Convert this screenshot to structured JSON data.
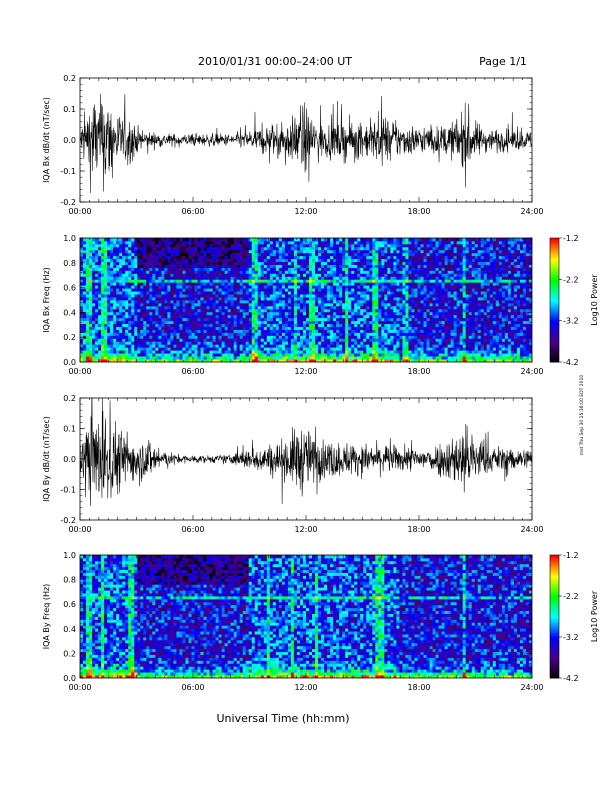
{
  "header": {
    "title": "2010/01/31  00:00–24:00 UT",
    "page": "Page 1/1"
  },
  "footer": {
    "xlabel": "Universal Time (hh:mm)",
    "side_note": "mst Thu Sep 30 15:38:00 EDT 2010"
  },
  "chart_data": [
    {
      "type": "line",
      "panel": "Bx waveform",
      "ylabel": "IQA Bx dB/dt (nT/sec)",
      "xlim": [
        0,
        24
      ],
      "ylim": [
        -0.2,
        0.2
      ],
      "xticks": [
        "00:00",
        "06:00",
        "12:00",
        "18:00",
        "24:00"
      ],
      "yticks": [
        "-0.2",
        "-0.1",
        "0.0",
        "0.1",
        "0.2"
      ],
      "envelope": {
        "hours": [
          0,
          0.3,
          0.7,
          1.0,
          1.4,
          1.8,
          2.2,
          2.7,
          3.2,
          4.0,
          5.0,
          6.0,
          7.0,
          8.0,
          8.7,
          9.5,
          10.2,
          10.8,
          11.3,
          11.7,
          12.0,
          12.4,
          13.0,
          14.0,
          15.0,
          16.0,
          17.0,
          17.8,
          18.8,
          19.7,
          20.2,
          20.5,
          20.9,
          21.5,
          22.5,
          23.3,
          24.0
        ],
        "amplitude": [
          0.05,
          0.12,
          0.2,
          0.16,
          0.2,
          0.13,
          0.1,
          0.09,
          0.04,
          0.03,
          0.025,
          0.025,
          0.025,
          0.025,
          0.035,
          0.05,
          0.07,
          0.07,
          0.09,
          0.13,
          0.14,
          0.09,
          0.07,
          0.08,
          0.07,
          0.09,
          0.07,
          0.06,
          0.05,
          0.07,
          0.1,
          0.15,
          0.08,
          0.05,
          0.045,
          0.04,
          0.035
        ]
      }
    },
    {
      "type": "heatmap",
      "panel": "Bx spectrogram",
      "ylabel": "IQA Bx Freq (Hz)",
      "xlim": [
        0,
        24
      ],
      "ylim": [
        0,
        1.0
      ],
      "xticks": [
        "00:00",
        "06:00",
        "12:00",
        "18:00",
        "24:00"
      ],
      "yticks": [
        "0.0",
        "0.2",
        "0.4",
        "0.6",
        "0.8",
        "1.0"
      ],
      "colorbar": {
        "label": "Log10 Power",
        "ticks": [
          "-1.2",
          "-2.2",
          "-3.2",
          "-4.2"
        ],
        "range": [
          -4.2,
          -1.2
        ],
        "colors": [
          "#000000",
          "#4b0082",
          "#0000ff",
          "#00ffff",
          "#00ff00",
          "#ffff00",
          "#ff0000"
        ]
      },
      "line_hz": 0.65,
      "vertical_streaks_hours": [
        0.5,
        1.3,
        9.3,
        11.4,
        12.3,
        14.2,
        15.7,
        17.3,
        20.4
      ]
    },
    {
      "type": "line",
      "panel": "By waveform",
      "ylabel": "IQA By dB/dt (nT/sec)",
      "xlim": [
        0,
        24
      ],
      "ylim": [
        -0.2,
        0.2
      ],
      "xticks": [
        "00:00",
        "06:00",
        "12:00",
        "18:00",
        "24:00"
      ],
      "yticks": [
        "-0.2",
        "-0.1",
        "0.0",
        "0.1",
        "0.2"
      ],
      "envelope": {
        "hours": [
          0,
          0.3,
          0.7,
          1.0,
          1.4,
          1.8,
          2.3,
          2.8,
          3.3,
          3.8,
          4.3,
          5.0,
          6.0,
          7.0,
          8.0,
          8.7,
          9.3,
          10.0,
          10.8,
          11.3,
          11.7,
          12.0,
          12.5,
          13.2,
          14.0,
          15.0,
          16.0,
          17.0,
          17.8,
          18.6,
          19.3,
          19.8,
          20.2,
          20.5,
          21.0,
          21.5,
          22.5,
          23.3,
          24.0
        ],
        "amplitude": [
          0.06,
          0.15,
          0.2,
          0.17,
          0.2,
          0.16,
          0.12,
          0.1,
          0.09,
          0.08,
          0.04,
          0.02,
          0.015,
          0.015,
          0.02,
          0.04,
          0.05,
          0.06,
          0.08,
          0.12,
          0.15,
          0.13,
          0.09,
          0.08,
          0.07,
          0.06,
          0.06,
          0.05,
          0.05,
          0.05,
          0.08,
          0.1,
          0.13,
          0.15,
          0.1,
          0.06,
          0.05,
          0.045,
          0.04
        ]
      }
    },
    {
      "type": "heatmap",
      "panel": "By spectrogram",
      "ylabel": "IQA By Freq (Hz)",
      "xlim": [
        0,
        24
      ],
      "ylim": [
        0,
        1.0
      ],
      "xticks": [
        "00:00",
        "06:00",
        "12:00",
        "18:00",
        "24:00"
      ],
      "yticks": [
        "0.0",
        "0.2",
        "0.4",
        "0.6",
        "0.8",
        "1.0"
      ],
      "colorbar": {
        "label": "Log10 Power",
        "ticks": [
          "-1.2",
          "-2.2",
          "-3.2",
          "-4.2"
        ],
        "range": [
          -4.2,
          -1.2
        ],
        "colors": [
          "#000000",
          "#4b0082",
          "#0000ff",
          "#00ffff",
          "#00ff00",
          "#ffff00",
          "#ff0000"
        ]
      },
      "line_hz": 0.66,
      "vertical_streaks_hours": [
        0.5,
        1.2,
        2.7,
        10.0,
        11.3,
        12.6,
        15.8,
        16.1,
        20.4
      ]
    }
  ]
}
